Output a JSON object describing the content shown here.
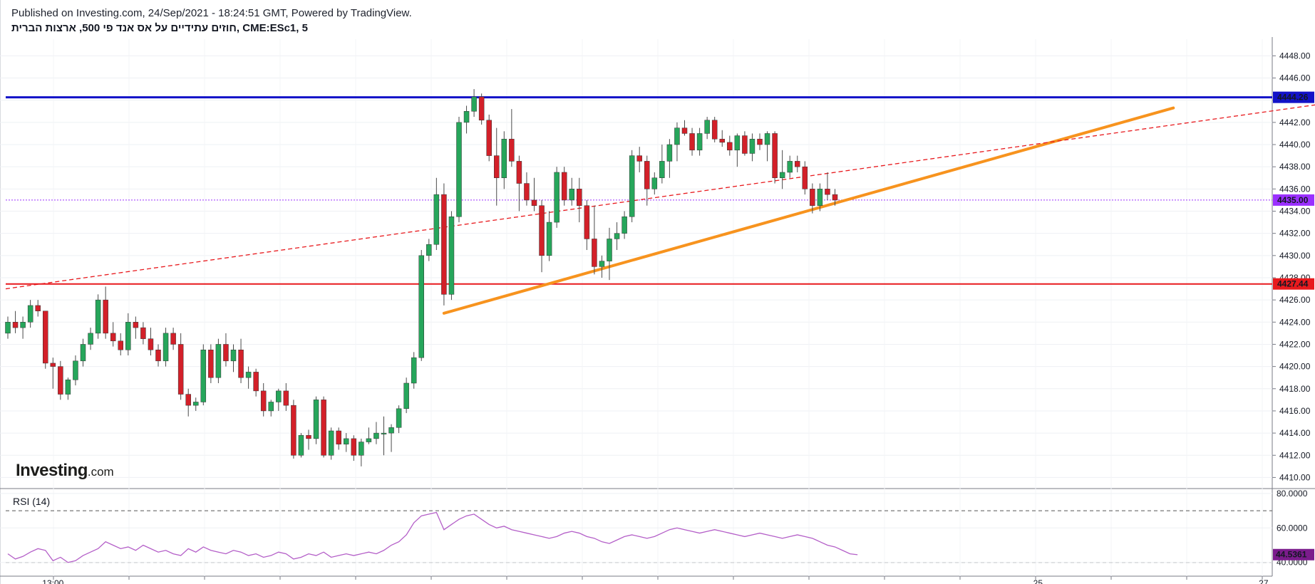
{
  "header": {
    "published": "Published on Investing.com, 24/Sep/2021 - 18:24:51 GMT, Powered by TradingView.",
    "symbol": "חוזים עתידיים על אס אנד פי 500, ארצות הברית, CME:ESc1, 5"
  },
  "logo": {
    "brand": "Investing",
    "suffix": ".com"
  },
  "rsi_title": "RSI (14)",
  "colors": {
    "up": "#26a65b",
    "down": "#d32029",
    "resistance": "#1212c8",
    "support": "#e8191d",
    "trend": "#f7931e",
    "dashed_trend": "#e8191d",
    "last_price": "#9b30ff",
    "rsi": "#b45fc8",
    "rsi_badge": "#7b1c8c"
  },
  "chart_data": [
    {
      "type": "candlestick",
      "title": "חוזים עתידיים על אס אנד פי 500, ארצות הברית, CME:ESc1, 5",
      "ylim": [
        4409,
        4449.5
      ],
      "y_ticks": [
        4410,
        4412,
        4414,
        4416,
        4418,
        4420,
        4422,
        4424,
        4426,
        4428,
        4430,
        4432,
        4434,
        4436,
        4438,
        4440,
        4442,
        4444,
        4446,
        4448
      ],
      "x_tick_labels": [
        {
          "label": "13:00",
          "bar": 6
        },
        {
          "label": "25",
          "bar": 137
        },
        {
          "label": "27",
          "bar": 167
        }
      ],
      "grid": true,
      "candles": [
        [
          4423.0,
          4424.5,
          4422.5,
          4424.0
        ],
        [
          4424.0,
          4425.0,
          4423.0,
          4423.5
        ],
        [
          4423.5,
          4424.5,
          4422.5,
          4424.0
        ],
        [
          4424.0,
          4426.0,
          4423.5,
          4425.5
        ],
        [
          4425.5,
          4426.0,
          4424.5,
          4425.0
        ],
        [
          4425.0,
          4425.0,
          4419.8,
          4420.3
        ],
        [
          4420.3,
          4420.8,
          4418.0,
          4420.0
        ],
        [
          4420.0,
          4420.5,
          4417.0,
          4417.5
        ],
        [
          4417.5,
          4419.0,
          4417.0,
          4418.8
        ],
        [
          4418.8,
          4421.0,
          4418.3,
          4420.5
        ],
        [
          4420.5,
          4422.5,
          4420.0,
          4422.0
        ],
        [
          4422.0,
          4423.5,
          4421.5,
          4423.0
        ],
        [
          4423.0,
          4426.5,
          4422.5,
          4426.0
        ],
        [
          4426.0,
          4427.2,
          4422.5,
          4423.0
        ],
        [
          4423.0,
          4424.0,
          4421.8,
          4422.3
        ],
        [
          4422.3,
          4423.0,
          4421.0,
          4421.5
        ],
        [
          4421.5,
          4424.8,
          4421.0,
          4424.0
        ],
        [
          4424.0,
          4424.5,
          4422.5,
          4423.5
        ],
        [
          4423.5,
          4424.0,
          4422.0,
          4422.5
        ],
        [
          4422.5,
          4423.5,
          4421.0,
          4421.5
        ],
        [
          4421.5,
          4422.0,
          4420.0,
          4420.5
        ],
        [
          4420.5,
          4423.5,
          4420.0,
          4423.0
        ],
        [
          4423.0,
          4423.5,
          4421.5,
          4422.0
        ],
        [
          4422.0,
          4423.0,
          4417.0,
          4417.5
        ],
        [
          4417.5,
          4418.0,
          4415.5,
          4416.5
        ],
        [
          4416.5,
          4417.2,
          4416.0,
          4416.8
        ],
        [
          4416.8,
          4422.0,
          4416.5,
          4421.5
        ],
        [
          4421.5,
          4422.0,
          4418.5,
          4419.0
        ],
        [
          4419.0,
          4422.5,
          4418.5,
          4422.0
        ],
        [
          4422.0,
          4423.0,
          4420.0,
          4420.5
        ],
        [
          4420.5,
          4422.0,
          4419.5,
          4421.5
        ],
        [
          4421.5,
          4422.5,
          4418.5,
          4419.0
        ],
        [
          4419.0,
          4420.0,
          4418.0,
          4419.5
        ],
        [
          4419.5,
          4419.8,
          4417.3,
          4417.8
        ],
        [
          4417.8,
          4418.5,
          4415.5,
          4416.0
        ],
        [
          4416.0,
          4417.0,
          4415.5,
          4416.8
        ],
        [
          4416.8,
          4418.0,
          4416.0,
          4417.8
        ],
        [
          4417.8,
          4418.5,
          4416.0,
          4416.5
        ],
        [
          4416.5,
          4417.0,
          4411.7,
          4412.0
        ],
        [
          4412.0,
          4414.0,
          4411.8,
          4413.8
        ],
        [
          4413.8,
          4414.3,
          4412.5,
          4413.5
        ],
        [
          4413.5,
          4417.3,
          4413.0,
          4417.0
        ],
        [
          4417.0,
          4417.3,
          4411.8,
          4412.0
        ],
        [
          4412.0,
          4414.5,
          4411.6,
          4414.2
        ],
        [
          4414.2,
          4414.5,
          4412.5,
          4413.0
        ],
        [
          4413.0,
          4414.0,
          4412.3,
          4413.5
        ],
        [
          4413.5,
          4413.8,
          4411.5,
          4412.0
        ],
        [
          4412.0,
          4413.5,
          4411.0,
          4413.2
        ],
        [
          4413.2,
          4414.5,
          4413.0,
          4413.5
        ],
        [
          4413.5,
          4415.0,
          4413.0,
          4414.0
        ],
        [
          4414.0,
          4415.5,
          4412.0,
          4414.0
        ],
        [
          4414.0,
          4414.8,
          4412.3,
          4414.5
        ],
        [
          4414.5,
          4416.5,
          4414.0,
          4416.2
        ],
        [
          4416.2,
          4419.0,
          4415.8,
          4418.5
        ],
        [
          4418.5,
          4421.3,
          4418.0,
          4420.8
        ],
        [
          4420.8,
          4430.5,
          4420.5,
          4430.0
        ],
        [
          4430.0,
          4431.5,
          4429.5,
          4431.0
        ],
        [
          4431.0,
          4437.0,
          4430.5,
          4435.5
        ],
        [
          4435.5,
          4436.5,
          4425.5,
          4426.5
        ],
        [
          4426.5,
          4434.0,
          4426.0,
          4433.5
        ],
        [
          4433.5,
          4442.5,
          4433.0,
          4442.0
        ],
        [
          4442.0,
          4443.5,
          4441.0,
          4443.0
        ],
        [
          4443.0,
          4445.0,
          4442.5,
          4444.3
        ],
        [
          4444.3,
          4444.6,
          4441.8,
          4442.2
        ],
        [
          4442.2,
          4442.7,
          4438.5,
          4439.0
        ],
        [
          4439.0,
          4441.5,
          4434.5,
          4437.0
        ],
        [
          4437.0,
          4441.2,
          4436.0,
          4440.5
        ],
        [
          4440.5,
          4443.2,
          4438.0,
          4438.5
        ],
        [
          4438.5,
          4439.0,
          4434.0,
          4436.5
        ],
        [
          4436.5,
          4437.5,
          4434.5,
          4435.0
        ],
        [
          4435.0,
          4437.0,
          4434.0,
          4434.5
        ],
        [
          4434.5,
          4435.0,
          4428.5,
          4430.0
        ],
        [
          4430.0,
          4434.0,
          4429.5,
          4433.0
        ],
        [
          4433.0,
          4438.0,
          4432.5,
          4437.5
        ],
        [
          4437.5,
          4438.0,
          4434.5,
          4435.0
        ],
        [
          4435.0,
          4437.0,
          4434.5,
          4436.0
        ],
        [
          4436.0,
          4437.0,
          4433.0,
          4434.5
        ],
        [
          4434.5,
          4435.0,
          4430.5,
          4431.5
        ],
        [
          4431.5,
          4434.5,
          4428.3,
          4429.0
        ],
        [
          4429.0,
          4430.0,
          4428.0,
          4429.5
        ],
        [
          4429.5,
          4432.5,
          4427.8,
          4431.5
        ],
        [
          4431.5,
          4433.0,
          4430.5,
          4432.0
        ],
        [
          4432.0,
          4434.0,
          4431.5,
          4433.5
        ],
        [
          4433.5,
          4439.5,
          4433.0,
          4439.0
        ],
        [
          4439.0,
          4439.8,
          4437.5,
          4438.5
        ],
        [
          4438.5,
          4439.0,
          4434.5,
          4436.0
        ],
        [
          4436.0,
          4437.5,
          4435.5,
          4437.0
        ],
        [
          4437.0,
          4440.0,
          4436.5,
          4438.5
        ],
        [
          4438.5,
          4440.5,
          4437.0,
          4440.0
        ],
        [
          4440.0,
          4442.0,
          4438.5,
          4441.5
        ],
        [
          4441.5,
          4442.2,
          4440.8,
          4441.0
        ],
        [
          4441.0,
          4441.5,
          4439.0,
          4439.5
        ],
        [
          4439.5,
          4441.5,
          4439.0,
          4441.0
        ],
        [
          4441.0,
          4442.5,
          4440.5,
          4442.2
        ],
        [
          4442.2,
          4442.5,
          4440.2,
          4440.5
        ],
        [
          4440.5,
          4441.3,
          4439.8,
          4440.2
        ],
        [
          4440.2,
          4440.8,
          4439.0,
          4439.5
        ],
        [
          4439.5,
          4441.0,
          4438.0,
          4440.8
        ],
        [
          4440.8,
          4441.2,
          4439.0,
          4439.2
        ],
        [
          4439.2,
          4441.0,
          4438.5,
          4440.5
        ],
        [
          4440.5,
          4441.0,
          4439.5,
          4440.0
        ],
        [
          4440.0,
          4441.2,
          4438.5,
          4441.0
        ],
        [
          4441.0,
          4441.2,
          4436.5,
          4437.0
        ],
        [
          4437.0,
          4439.5,
          4436.0,
          4437.5
        ],
        [
          4437.5,
          4439.0,
          4437.0,
          4438.5
        ],
        [
          4438.5,
          4439.0,
          4437.5,
          4438.0
        ],
        [
          4438.0,
          4438.5,
          4435.5,
          4436.0
        ],
        [
          4436.0,
          4436.5,
          4433.8,
          4434.5
        ],
        [
          4434.5,
          4436.5,
          4434.0,
          4436.0
        ],
        [
          4436.0,
          4437.5,
          4435.0,
          4435.5
        ],
        [
          4435.5,
          4436.0,
          4434.5,
          4435.0
        ]
      ],
      "horizontal_lines": [
        {
          "price": 4444.26,
          "label": "4444.26",
          "role": "resistance"
        },
        {
          "price": 4427.44,
          "label": "4427.44",
          "role": "support"
        },
        {
          "price": 4435.0,
          "label": "4435.00",
          "role": "last_price"
        }
      ],
      "trend_lines": [
        {
          "style": "solid",
          "from": [
            58,
            4424.8
          ],
          "to": [
            155,
            4443.3
          ]
        },
        {
          "style": "dashed",
          "from": [
            0,
            4427.0
          ],
          "to": [
            193,
            4445.4
          ]
        }
      ]
    },
    {
      "type": "line",
      "title": "RSI (14)",
      "ylim": [
        37,
        82
      ],
      "y_ticks": [
        40,
        60,
        80
      ],
      "y_tick_labels": [
        "40.0000",
        "60.0000",
        "80.0000"
      ],
      "levels": [
        70,
        30
      ],
      "last_value": "44.5361",
      "values": [
        45.0,
        42.0,
        43.5,
        46.0,
        48.0,
        47.0,
        41.0,
        43.0,
        40.0,
        41.0,
        44.0,
        46.0,
        48.0,
        52.0,
        50.0,
        48.0,
        49.0,
        47.0,
        50.0,
        48.0,
        46.0,
        47.0,
        45.0,
        44.0,
        48.0,
        46.0,
        49.0,
        47.0,
        46.0,
        45.0,
        47.0,
        46.0,
        44.0,
        45.0,
        43.0,
        44.0,
        46.0,
        45.0,
        42.0,
        43.0,
        45.0,
        44.0,
        46.0,
        43.0,
        44.0,
        45.0,
        44.0,
        45.0,
        46.0,
        45.0,
        47.0,
        50.0,
        52.0,
        56.0,
        63.0,
        67.0,
        68.0,
        69.0,
        59.0,
        62.0,
        65.0,
        67.0,
        68.0,
        65.0,
        62.0,
        60.0,
        61.0,
        59.0,
        58.0,
        57.0,
        56.0,
        55.0,
        54.0,
        55.0,
        57.0,
        58.0,
        57.0,
        55.0,
        54.0,
        52.0,
        51.0,
        53.0,
        55.0,
        56.0,
        55.0,
        54.0,
        55.0,
        57.0,
        59.0,
        60.0,
        59.0,
        58.0,
        57.0,
        58.0,
        59.0,
        58.0,
        57.0,
        56.0,
        55.0,
        56.0,
        57.0,
        56.0,
        55.0,
        54.0,
        55.0,
        56.0,
        55.0,
        54.0,
        52.0,
        50.0,
        49.0,
        47.0,
        45.0,
        44.5
      ]
    }
  ]
}
